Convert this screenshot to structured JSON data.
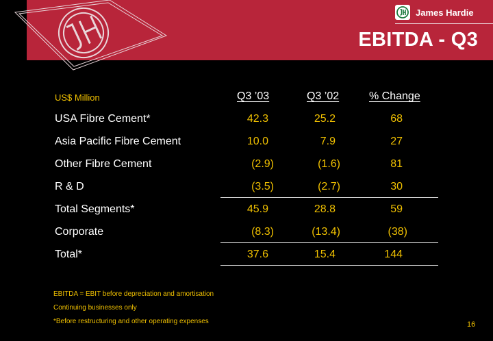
{
  "brand": {
    "name": "James Hardie"
  },
  "slide": {
    "title": "EBITDA - Q3",
    "page_number": "16"
  },
  "table": {
    "units_label": "US$ Million",
    "columns": [
      "Q3 ’03",
      "Q3 ’02",
      "% Change"
    ],
    "rows": [
      {
        "label": "USA Fibre Cement*",
        "values": [
          "42.3",
          "25.2",
          "68"
        ]
      },
      {
        "label": "Asia Pacific Fibre Cement",
        "values": [
          "10.0",
          "7.9",
          "27"
        ]
      },
      {
        "label": "Other Fibre Cement",
        "values": [
          "(2.9)",
          "(1.6)",
          "81"
        ]
      },
      {
        "label": "R & D",
        "values": [
          "(3.5)",
          "(2.7)",
          "30"
        ]
      },
      {
        "label": "Total Segments*",
        "values": [
          "45.9",
          "28.8",
          "59"
        ]
      },
      {
        "label": "Corporate",
        "values": [
          "(8.3)",
          "(13.4)",
          "(38)"
        ]
      },
      {
        "label": "Total*",
        "values": [
          "37.6",
          "15.4",
          "144"
        ]
      }
    ]
  },
  "footnotes": [
    "EBITDA = EBIT before depreciation and amortisation",
    "Continuing businesses only",
    "*Before restructuring and other operating expenses"
  ]
}
